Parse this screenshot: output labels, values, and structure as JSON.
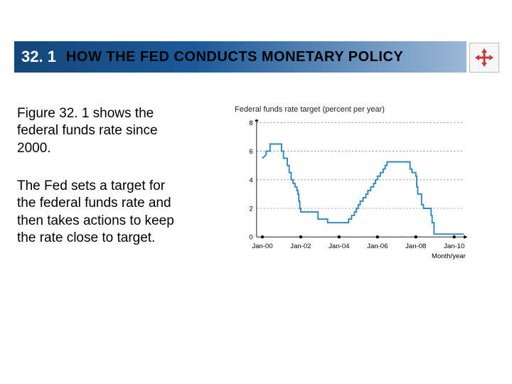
{
  "header": {
    "section_number": "32. 1",
    "title": "HOW THE FED CONDUCTS MONETARY POLICY",
    "bar_gradient_from": "#14477a",
    "bar_gradient_to": "#9cb8d6",
    "num_color": "#ffffff",
    "title_color": "#000000"
  },
  "mover_icon_color": "#c43a3a",
  "body": {
    "para1": "Figure 32. 1 shows the federal funds rate since 2000.",
    "para2": "The Fed sets a target for the federal funds rate and then takes actions to keep the rate close to target."
  },
  "chart": {
    "type": "line-step",
    "title": "Federal funds rate target (percent per year)",
    "xlabel": "Month/year",
    "ylim": [
      0,
      8
    ],
    "ytick_step": 2,
    "yticks": [
      0,
      2,
      4,
      6,
      8
    ],
    "categories": [
      "Jan-00",
      "Jan-02",
      "Jan-04",
      "Jan-06",
      "Jan-08",
      "Jan-10"
    ],
    "x_positions": [
      0,
      2,
      4,
      6,
      8,
      10
    ],
    "xlim": [
      -0.3,
      10.5
    ],
    "line_color": "#2f89bf",
    "line_width": 2.2,
    "grid_dot_color": "#888888",
    "axis_color": "#000000",
    "background_color": "#ffffff",
    "label_fontsize": 11,
    "title_fontsize": 11,
    "series_step": [
      [
        0.0,
        5.5
      ],
      [
        0.2,
        5.75
      ],
      [
        0.2,
        6.0
      ],
      [
        0.4,
        6.0
      ],
      [
        0.4,
        6.5
      ],
      [
        1.0,
        6.5
      ],
      [
        1.0,
        6.0
      ],
      [
        1.1,
        6.0
      ],
      [
        1.1,
        5.5
      ],
      [
        1.3,
        5.5
      ],
      [
        1.3,
        5.0
      ],
      [
        1.4,
        5.0
      ],
      [
        1.4,
        4.5
      ],
      [
        1.5,
        4.5
      ],
      [
        1.5,
        4.0
      ],
      [
        1.6,
        4.0
      ],
      [
        1.6,
        3.75
      ],
      [
        1.7,
        3.75
      ],
      [
        1.7,
        3.5
      ],
      [
        1.8,
        3.5
      ],
      [
        1.8,
        3.25
      ],
      [
        1.85,
        3.25
      ],
      [
        1.85,
        3.0
      ],
      [
        1.9,
        3.0
      ],
      [
        1.9,
        2.5
      ],
      [
        1.95,
        2.5
      ],
      [
        1.95,
        2.0
      ],
      [
        2.0,
        2.0
      ],
      [
        2.0,
        1.75
      ],
      [
        2.9,
        1.75
      ],
      [
        2.9,
        1.25
      ],
      [
        3.4,
        1.25
      ],
      [
        3.4,
        1.0
      ],
      [
        4.5,
        1.0
      ],
      [
        4.5,
        1.25
      ],
      [
        4.65,
        1.25
      ],
      [
        4.65,
        1.5
      ],
      [
        4.8,
        1.5
      ],
      [
        4.8,
        1.75
      ],
      [
        4.9,
        1.75
      ],
      [
        4.9,
        2.0
      ],
      [
        5.0,
        2.0
      ],
      [
        5.0,
        2.25
      ],
      [
        5.1,
        2.25
      ],
      [
        5.1,
        2.5
      ],
      [
        5.25,
        2.5
      ],
      [
        5.25,
        2.75
      ],
      [
        5.4,
        2.75
      ],
      [
        5.4,
        3.0
      ],
      [
        5.5,
        3.0
      ],
      [
        5.5,
        3.25
      ],
      [
        5.65,
        3.25
      ],
      [
        5.65,
        3.5
      ],
      [
        5.8,
        3.5
      ],
      [
        5.8,
        3.75
      ],
      [
        5.9,
        3.75
      ],
      [
        5.9,
        4.0
      ],
      [
        6.0,
        4.0
      ],
      [
        6.0,
        4.25
      ],
      [
        6.15,
        4.25
      ],
      [
        6.15,
        4.5
      ],
      [
        6.3,
        4.5
      ],
      [
        6.3,
        4.75
      ],
      [
        6.4,
        4.75
      ],
      [
        6.4,
        5.0
      ],
      [
        6.5,
        5.0
      ],
      [
        6.5,
        5.25
      ],
      [
        7.7,
        5.25
      ],
      [
        7.7,
        4.75
      ],
      [
        7.8,
        4.75
      ],
      [
        7.8,
        4.5
      ],
      [
        8.0,
        4.5
      ],
      [
        8.0,
        4.25
      ],
      [
        8.05,
        4.25
      ],
      [
        8.05,
        3.5
      ],
      [
        8.1,
        3.5
      ],
      [
        8.1,
        3.0
      ],
      [
        8.3,
        3.0
      ],
      [
        8.3,
        2.25
      ],
      [
        8.4,
        2.25
      ],
      [
        8.4,
        2.0
      ],
      [
        8.8,
        2.0
      ],
      [
        8.8,
        1.5
      ],
      [
        8.85,
        1.5
      ],
      [
        8.85,
        1.0
      ],
      [
        8.95,
        1.0
      ],
      [
        8.95,
        0.2
      ],
      [
        10.5,
        0.2
      ]
    ]
  }
}
